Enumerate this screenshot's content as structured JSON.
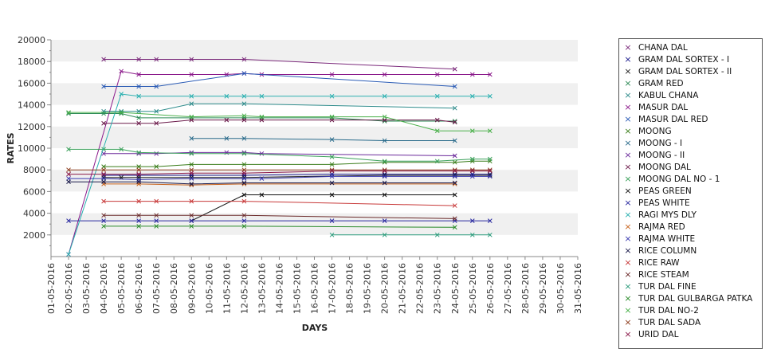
{
  "chart_data": {
    "type": "line",
    "title": "",
    "xlabel": "DAYS",
    "ylabel": "RATES",
    "ylim": [
      0,
      20000
    ],
    "yticks": [
      2000,
      4000,
      6000,
      8000,
      10000,
      12000,
      14000,
      16000,
      18000,
      20000
    ],
    "grid": "alternating horizontal bands",
    "legend_position": "right",
    "categories": [
      "01-05-2016",
      "02-05-2016",
      "03-05-2016",
      "04-05-2016",
      "05-05-2016",
      "06-05-2016",
      "07-05-2016",
      "08-05-2016",
      "09-05-2016",
      "10-05-2016",
      "11-05-2016",
      "12-05-2016",
      "13-05-2016",
      "14-05-2016",
      "15-05-2016",
      "16-05-2016",
      "17-05-2016",
      "18-05-2016",
      "19-05-2016",
      "20-05-2016",
      "21-05-2016",
      "22-05-2016",
      "23-05-2016",
      "24-05-2016",
      "25-05-2016",
      "26-05-2016",
      "27-05-2016",
      "28-05-2016",
      "29-05-2016",
      "30-05-2016",
      "31-05-2016"
    ],
    "series": [
      {
        "name": "CHANA DAL",
        "color": "#7b2a7b",
        "points": [
          [
            4,
            18200
          ],
          [
            6,
            18200
          ],
          [
            7,
            18200
          ],
          [
            9,
            18200
          ],
          [
            12,
            18200
          ],
          [
            24,
            17300
          ]
        ]
      },
      {
        "name": "GRAM DAL SORTEX  - I",
        "color": "#1a1a8c",
        "points": [
          [
            4,
            7500
          ],
          [
            6,
            7500
          ],
          [
            9,
            7500
          ],
          [
            12,
            7500
          ],
          [
            17,
            7600
          ],
          [
            20,
            7600
          ],
          [
            24,
            7600
          ],
          [
            25,
            7600
          ],
          [
            26,
            7600
          ]
        ]
      },
      {
        "name": "GRAM DAL SORTEX - II",
        "color": "#222222",
        "points": [
          [
            4,
            7300
          ],
          [
            5,
            7300
          ],
          [
            6,
            7300
          ],
          [
            9,
            7300
          ],
          [
            12,
            7300
          ],
          [
            20,
            7500
          ],
          [
            24,
            7500
          ],
          [
            26,
            7500
          ]
        ]
      },
      {
        "name": "GRAM RED",
        "color": "#2e8b57",
        "points": [
          [
            2,
            13200
          ],
          [
            4,
            13200
          ],
          [
            5,
            13200
          ],
          [
            6,
            12800
          ],
          [
            9,
            12800
          ],
          [
            12,
            12800
          ],
          [
            13,
            12800
          ],
          [
            17,
            12800
          ],
          [
            20,
            12500
          ],
          [
            24,
            12500
          ]
        ]
      },
      {
        "name": "KABUL CHANA",
        "color": "#2e8b8b",
        "points": [
          [
            4,
            13400
          ],
          [
            5,
            13400
          ],
          [
            6,
            13400
          ],
          [
            7,
            13400
          ],
          [
            9,
            14100
          ],
          [
            12,
            14100
          ],
          [
            24,
            13700
          ]
        ]
      },
      {
        "name": "MASUR DAL",
        "color": "#8b1a8b",
        "points": [
          [
            2,
            200
          ],
          [
            5,
            17100
          ],
          [
            6,
            16800
          ],
          [
            9,
            16800
          ],
          [
            11,
            16800
          ],
          [
            12,
            16900
          ],
          [
            13,
            16800
          ],
          [
            17,
            16800
          ],
          [
            20,
            16800
          ],
          [
            23,
            16800
          ],
          [
            25,
            16800
          ],
          [
            26,
            16800
          ]
        ]
      },
      {
        "name": "MASUR DAL RED",
        "color": "#2a5bb5",
        "points": [
          [
            4,
            15700
          ],
          [
            6,
            15700
          ],
          [
            7,
            15700
          ],
          [
            12,
            16900
          ],
          [
            24,
            15700
          ]
        ]
      },
      {
        "name": "MOONG",
        "color": "#3a7d1a",
        "points": [
          [
            4,
            8300
          ],
          [
            6,
            8300
          ],
          [
            7,
            8300
          ],
          [
            9,
            8500
          ],
          [
            12,
            8500
          ],
          [
            17,
            8500
          ],
          [
            20,
            8700
          ],
          [
            24,
            8700
          ],
          [
            25,
            8800
          ],
          [
            26,
            8800
          ]
        ]
      },
      {
        "name": "MOONG - I",
        "color": "#2a6b8b",
        "points": [
          [
            9,
            10900
          ],
          [
            11,
            10900
          ],
          [
            12,
            10900
          ],
          [
            17,
            10800
          ],
          [
            20,
            10700
          ],
          [
            24,
            10700
          ]
        ]
      },
      {
        "name": "MOONG - II",
        "color": "#6b2a9b",
        "points": [
          [
            4,
            9500
          ],
          [
            6,
            9500
          ],
          [
            7,
            9500
          ],
          [
            9,
            9600
          ],
          [
            11,
            9600
          ],
          [
            12,
            9600
          ],
          [
            13,
            9500
          ],
          [
            24,
            9300
          ]
        ]
      },
      {
        "name": "MOONG DAL",
        "color": "#6b1a4a",
        "points": [
          [
            4,
            12300
          ],
          [
            6,
            12300
          ],
          [
            7,
            12300
          ],
          [
            9,
            12600
          ],
          [
            11,
            12600
          ],
          [
            12,
            12600
          ],
          [
            13,
            12600
          ],
          [
            17,
            12600
          ],
          [
            20,
            12600
          ],
          [
            23,
            12600
          ],
          [
            24,
            12400
          ]
        ]
      },
      {
        "name": "MOONG DAL NO - 1",
        "color": "#3aa05a",
        "points": [
          [
            2,
            9900
          ],
          [
            4,
            9900
          ],
          [
            5,
            9900
          ],
          [
            6,
            9600
          ],
          [
            9,
            9500
          ],
          [
            12,
            9500
          ],
          [
            17,
            9200
          ],
          [
            20,
            8800
          ],
          [
            23,
            8800
          ],
          [
            25,
            9000
          ],
          [
            26,
            9000
          ]
        ]
      },
      {
        "name": "PEAS GREEN",
        "color": "#111111",
        "points": [
          [
            9,
            3300
          ],
          [
            12,
            5700
          ],
          [
            13,
            5700
          ],
          [
            17,
            5700
          ],
          [
            20,
            5700
          ],
          [
            24,
            5700
          ]
        ]
      },
      {
        "name": "PEAS WHITE",
        "color": "#2a2aa0",
        "points": [
          [
            2,
            3300
          ],
          [
            4,
            3300
          ],
          [
            6,
            3300
          ],
          [
            7,
            3300
          ],
          [
            9,
            3300
          ],
          [
            12,
            3300
          ],
          [
            17,
            3300
          ],
          [
            20,
            3300
          ],
          [
            24,
            3300
          ],
          [
            25,
            3300
          ],
          [
            26,
            3300
          ]
        ]
      },
      {
        "name": "RAGI MYS DLY",
        "color": "#2ab0b0",
        "points": [
          [
            2,
            200
          ],
          [
            5,
            15000
          ],
          [
            6,
            14800
          ],
          [
            9,
            14800
          ],
          [
            11,
            14800
          ],
          [
            12,
            14800
          ],
          [
            13,
            14800
          ],
          [
            17,
            14800
          ],
          [
            20,
            14800
          ],
          [
            23,
            14800
          ],
          [
            25,
            14800
          ],
          [
            26,
            14800
          ]
        ]
      },
      {
        "name": "RAJMA RED",
        "color": "#c8641e",
        "points": [
          [
            4,
            6700
          ],
          [
            6,
            6700
          ],
          [
            9,
            6600
          ],
          [
            12,
            6700
          ],
          [
            24,
            6700
          ]
        ]
      },
      {
        "name": "RAJMA WHITE",
        "color": "#3a3ab0",
        "points": [
          [
            2,
            7200
          ],
          [
            4,
            7200
          ],
          [
            6,
            7100
          ],
          [
            9,
            7200
          ],
          [
            12,
            7200
          ],
          [
            13,
            7200
          ],
          [
            17,
            7400
          ],
          [
            20,
            7400
          ],
          [
            24,
            7400
          ],
          [
            25,
            7400
          ],
          [
            26,
            7400
          ]
        ]
      },
      {
        "name": "RICE COLUMN",
        "color": "#1a1a4a",
        "points": [
          [
            2,
            6900
          ],
          [
            4,
            6900
          ],
          [
            6,
            6900
          ],
          [
            9,
            6700
          ],
          [
            12,
            6800
          ],
          [
            17,
            6800
          ],
          [
            20,
            6800
          ],
          [
            24,
            6800
          ]
        ]
      },
      {
        "name": "RICE RAW",
        "color": "#c83a3a",
        "points": [
          [
            4,
            5100
          ],
          [
            6,
            5100
          ],
          [
            7,
            5100
          ],
          [
            9,
            5100
          ],
          [
            12,
            5100
          ],
          [
            24,
            4700
          ]
        ]
      },
      {
        "name": "RICE STEAM",
        "color": "#6b2a2a",
        "points": [
          [
            4,
            3800
          ],
          [
            6,
            3800
          ],
          [
            7,
            3800
          ],
          [
            9,
            3800
          ],
          [
            12,
            3800
          ],
          [
            24,
            3500
          ]
        ]
      },
      {
        "name": "TUR DAL FINE",
        "color": "#2a9b7b",
        "points": [
          [
            17,
            2000
          ],
          [
            20,
            2000
          ],
          [
            23,
            2000
          ],
          [
            25,
            2000
          ],
          [
            26,
            2000
          ]
        ]
      },
      {
        "name": "TUR DAL GULBARGA PATKA",
        "color": "#2a8b2a",
        "points": [
          [
            4,
            2800
          ],
          [
            6,
            2800
          ],
          [
            7,
            2800
          ],
          [
            9,
            2800
          ],
          [
            12,
            2800
          ],
          [
            24,
            2700
          ]
        ]
      },
      {
        "name": "TUR DAL NO-2",
        "color": "#4ab04a",
        "points": [
          [
            2,
            13300
          ],
          [
            5,
            13300
          ],
          [
            9,
            12900
          ],
          [
            12,
            13000
          ],
          [
            13,
            12900
          ],
          [
            17,
            12900
          ],
          [
            20,
            12900
          ],
          [
            23,
            11600
          ],
          [
            25,
            11600
          ],
          [
            26,
            11600
          ]
        ]
      },
      {
        "name": "TUR DAL SADA",
        "color": "#8b3a1a",
        "points": [
          [
            2,
            8000
          ],
          [
            4,
            8000
          ],
          [
            6,
            8000
          ],
          [
            9,
            8000
          ],
          [
            12,
            8000
          ],
          [
            17,
            8000
          ],
          [
            20,
            8000
          ],
          [
            24,
            8000
          ],
          [
            25,
            8000
          ],
          [
            26,
            8000
          ]
        ]
      },
      {
        "name": "URID DAL",
        "color": "#8b1a4a",
        "points": [
          [
            2,
            7600
          ],
          [
            4,
            7600
          ],
          [
            6,
            7600
          ],
          [
            9,
            7700
          ],
          [
            12,
            7700
          ],
          [
            17,
            7900
          ],
          [
            20,
            7900
          ],
          [
            24,
            7900
          ],
          [
            25,
            7900
          ],
          [
            26,
            7900
          ]
        ]
      }
    ]
  }
}
